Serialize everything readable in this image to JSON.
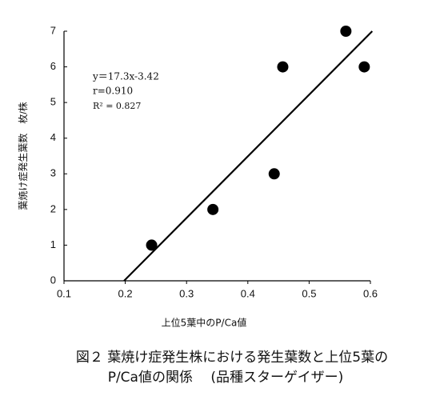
{
  "chart_data": {
    "type": "scatter",
    "x_label": "上位5葉中のP/Ca値",
    "y_label": "葉焼け症発生葉数　枚/株",
    "x": [
      0.243,
      0.343,
      0.443,
      0.457,
      0.56,
      0.59
    ],
    "values": [
      1,
      2,
      3,
      6,
      7,
      6
    ],
    "color": "#000000",
    "xlim": [
      0.1,
      0.6
    ],
    "xticks": [
      0.1,
      0.2,
      0.3,
      0.4,
      0.5,
      0.6
    ],
    "ylim": [
      0,
      7
    ],
    "yticks": [
      0,
      1,
      2,
      3,
      4,
      5,
      6,
      7
    ],
    "trendline": {
      "x": [
        0.198,
        0.603
      ],
      "values": [
        0,
        7
      ]
    },
    "annotations": [
      "y＝17.3x-3.42",
      "r=0.910",
      "R² = 0.827"
    ]
  },
  "caption": [
    "図２  葉焼け症発生株における発生葉数と上位5葉の",
    "P/Ca値の関係　 (品種スターゲイザー)"
  ]
}
